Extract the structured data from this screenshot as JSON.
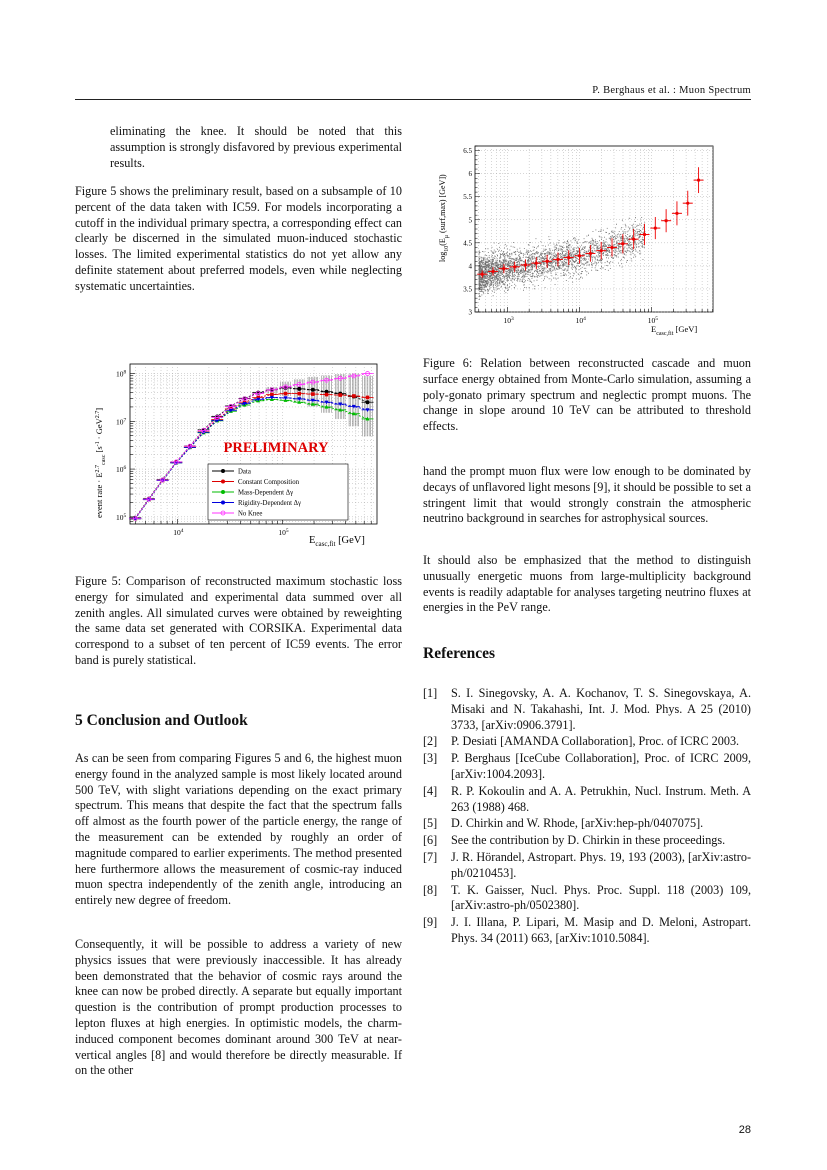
{
  "header": {
    "text": "P. Berghaus et al. : Muon Spectrum"
  },
  "left": {
    "p0": "eliminating the knee. It should be noted that this assumption is strongly disfavored by previous experimental results.",
    "p1": "Figure 5 shows the preliminary result, based on a subsample of 10 percent of the data taken with IC59. For models incorporating a cutoff in the individual primary spectra, a corresponding effect can clearly be discerned in the simulated muon-induced stochastic losses. The limited experimental statistics do not yet allow any definite statement about preferred models, even while neglecting systematic uncertainties.",
    "fig5_caption": "Figure 5: Comparison of reconstructed maximum stochastic loss energy for simulated and experimental data summed over all zenith angles. All simulated curves were obtained by reweighting the same data set generated with CORSIKA. Experimental data correspond to a subset of ten percent of IC59 events. The error band is purely statistical.",
    "section_heading": "5   Conclusion and Outlook",
    "p2": "As can be seen from comparing Figures 5 and 6, the highest muon energy found in the analyzed sample is most likely located around 500 TeV, with slight variations depending on the exact primary spectrum. This means that despite the fact that the spectrum falls off almost as the fourth power of the particle energy, the range of the measurement can be extended by roughly an order of magnitude compared to earlier experiments. The method presented here furthermore allows the measurement of cosmic-ray induced muon spectra independently of the zenith angle, introducing an entirely new degree of freedom.",
    "p3": "Consequently, it will be possible to address a variety of new physics issues that were previously inaccessible. It has already been demonstrated that the behavior of cosmic rays around the knee can now be probed directly. A separate but equally important question is the contribution of prompt production processes to lepton fluxes at high energies. In optimistic models, the charm-induced component becomes dominant around 300 TeV at near-vertical angles [8] and would therefore be directly measurable. If on the other"
  },
  "right": {
    "fig6_caption": "Figure 6: Relation between reconstructed cascade and muon surface energy obtained from Monte-Carlo simulation, assuming a poly-gonato primary spectrum and neglectic prompt muons. The change in slope around 10 TeV can be attributed to threshold effects.",
    "p4": "hand the prompt muon flux were low enough to be dominated by decays of unflavored light mesons [9], it should be possible to set a stringent limit that would strongly constrain the atmospheric neutrino background in searches for astrophysical sources.",
    "p5": "It should also be emphasized that the method to distinguish unusually energetic muons from large-multiplicity background events is readily adaptable for analyses targeting neutrino fluxes at energies in the PeV range.",
    "references_heading": "References",
    "references": [
      {
        "num": "[1]",
        "text": "S. I. Sinegovsky, A. A. Kochanov, T. S. Sinegovskaya, A. Misaki and N. Takahashi, Int. J. Mod. Phys. A 25 (2010) 3733, [arXiv:0906.3791]."
      },
      {
        "num": "[2]",
        "text": "P. Desiati [AMANDA Collaboration], Proc. of ICRC 2003."
      },
      {
        "num": "[3]",
        "text": "P. Berghaus [IceCube Collaboration], Proc. of ICRC 2009, [arXiv:1004.2093]."
      },
      {
        "num": "[4]",
        "text": "R. P. Kokoulin and A. A. Petrukhin, Nucl. Instrum. Meth. A 263 (1988) 468."
      },
      {
        "num": "[5]",
        "text": "D. Chirkin and W. Rhode, [arXiv:hep-ph/0407075]."
      },
      {
        "num": "[6]",
        "text": "See the contribution by D. Chirkin in these proceedings."
      },
      {
        "num": "[7]",
        "text": "J. R. Hörandel, Astropart. Phys. 19, 193 (2003), [arXiv:astro-ph/0210453]."
      },
      {
        "num": "[8]",
        "text": "T. K. Gaisser, Nucl. Phys. Proc. Suppl. 118 (2003) 109, [arXiv:astro-ph/0502380]."
      },
      {
        "num": "[9]",
        "text": "J. I. Illana, P. Lipari, M. Masip and D. Meloni, Astropart. Phys. 34 (2011) 663, [arXiv:1010.5084]."
      }
    ]
  },
  "page_number": "28",
  "chart_data": [
    {
      "type": "line",
      "xlabel": "E_casc,fit [GeV]",
      "ylabel": "event rate · E_casc^2.7 [s^-1 · GeV^2.7]",
      "x_scale": "log",
      "y_scale": "log",
      "xlim_log10": [
        3.55,
        5.9
      ],
      "ylim_log10": [
        4.85,
        8.2
      ],
      "x_ticks": [
        "10^4",
        "10^5"
      ],
      "y_ticks": [
        "10^5",
        "10^6",
        "10^7",
        "10^8"
      ],
      "annotation": "PRELIMINARY",
      "annotation_color": "#dd0000",
      "legend_position": "lower-center",
      "x_log10": [
        3.6,
        3.73,
        3.86,
        3.99,
        4.12,
        4.25,
        4.38,
        4.51,
        4.64,
        4.77,
        4.9,
        5.03,
        5.16,
        5.29,
        5.42,
        5.55,
        5.68,
        5.81
      ],
      "series": [
        {
          "name": "Data",
          "color": "#000000",
          "marker": "circle",
          "log10_values": [
            4.98,
            5.38,
            5.78,
            6.15,
            6.48,
            6.82,
            7.1,
            7.32,
            7.48,
            7.6,
            7.66,
            7.7,
            7.68,
            7.66,
            7.62,
            7.58,
            7.52,
            7.4
          ]
        },
        {
          "name": "Constant Composition",
          "color": "#dd0000",
          "marker": "square",
          "log10_values": [
            4.96,
            5.36,
            5.76,
            6.14,
            6.46,
            6.78,
            7.04,
            7.26,
            7.4,
            7.5,
            7.56,
            7.58,
            7.58,
            7.57,
            7.56,
            7.55,
            7.53,
            7.5
          ]
        },
        {
          "name": "Mass-Dependent Δγ",
          "color": "#00bb00",
          "marker": "triangle",
          "log10_values": [
            4.96,
            5.36,
            5.76,
            6.13,
            6.45,
            6.76,
            7.01,
            7.21,
            7.34,
            7.43,
            7.46,
            7.44,
            7.4,
            7.36,
            7.3,
            7.24,
            7.16,
            7.05
          ]
        },
        {
          "name": "Rigidity-Dependent Δγ",
          "color": "#0000dd",
          "marker": "triangle-down",
          "log10_values": [
            4.96,
            5.36,
            5.76,
            6.13,
            6.45,
            6.77,
            7.02,
            7.23,
            7.37,
            7.46,
            7.5,
            7.49,
            7.47,
            7.44,
            7.4,
            7.36,
            7.31,
            7.24
          ]
        },
        {
          "name": "No Knee",
          "color": "#ff33ff",
          "marker": "circle-open",
          "log10_values": [
            4.97,
            5.37,
            5.77,
            6.15,
            6.48,
            6.81,
            7.08,
            7.31,
            7.47,
            7.58,
            7.66,
            7.72,
            7.77,
            7.82,
            7.86,
            7.9,
            7.95,
            8.0
          ]
        }
      ]
    },
    {
      "type": "scatter",
      "xlabel": "E_casc,fit [GeV]",
      "ylabel": "log10(E_μ(surf,max) [GeV])",
      "x_scale": "log",
      "xlim_log10": [
        2.55,
        5.85
      ],
      "ylim": [
        3,
        6.6
      ],
      "x_ticks": [
        "10^3",
        "10^4",
        "10^5"
      ],
      "y_ticks": [
        "3",
        "3.5",
        "4",
        "4.5",
        "5",
        "5.5",
        "6",
        "6.5"
      ],
      "profile_color": "#ee0000",
      "profile_x_log10": [
        2.65,
        2.8,
        2.95,
        3.1,
        3.25,
        3.4,
        3.55,
        3.7,
        3.85,
        4.0,
        4.15,
        4.3,
        4.45,
        4.6,
        4.75,
        4.9,
        5.05,
        5.2,
        5.35,
        5.5,
        5.65
      ],
      "profile_y": [
        3.82,
        3.88,
        3.94,
        3.98,
        4.02,
        4.06,
        4.1,
        4.14,
        4.18,
        4.22,
        4.27,
        4.33,
        4.4,
        4.48,
        4.58,
        4.68,
        4.82,
        4.98,
        5.14,
        5.36,
        5.86
      ]
    }
  ]
}
